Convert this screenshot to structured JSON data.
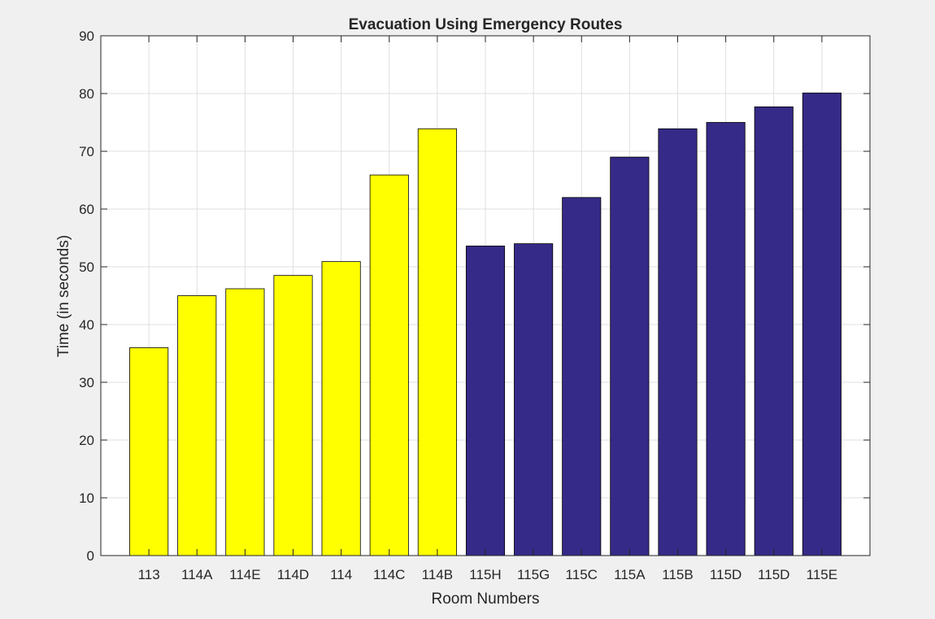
{
  "chart_data": {
    "type": "bar",
    "title": "Evacuation Using Emergency Routes",
    "xlabel": "Room Numbers",
    "ylabel": "Time (in seconds)",
    "ylim": [
      0,
      90
    ],
    "yticks": [
      0,
      10,
      20,
      30,
      40,
      50,
      60,
      70,
      80,
      90
    ],
    "grid": true,
    "categories": [
      "113",
      "114A",
      "114E",
      "114D",
      "114",
      "114C",
      "114B",
      "115H",
      "115G",
      "115C",
      "115A",
      "115B",
      "115D",
      "115D",
      "115E"
    ],
    "values": [
      36,
      45,
      46.2,
      48.5,
      50.9,
      65.9,
      73.9,
      53.6,
      54,
      62,
      69,
      73.9,
      75,
      77.7,
      80.1
    ],
    "bar_colors": [
      "#ffff00",
      "#ffff00",
      "#ffff00",
      "#ffff00",
      "#ffff00",
      "#ffff00",
      "#ffff00",
      "#352a87",
      "#352a87",
      "#352a87",
      "#352a87",
      "#352a87",
      "#352a87",
      "#352a87",
      "#352a87"
    ]
  },
  "colors": {
    "figure_background": "#f0f0f0",
    "axes_background": "#ffffff",
    "grid": "#dfdfdf",
    "axis": "#262626",
    "bar_edge": "#000000"
  }
}
